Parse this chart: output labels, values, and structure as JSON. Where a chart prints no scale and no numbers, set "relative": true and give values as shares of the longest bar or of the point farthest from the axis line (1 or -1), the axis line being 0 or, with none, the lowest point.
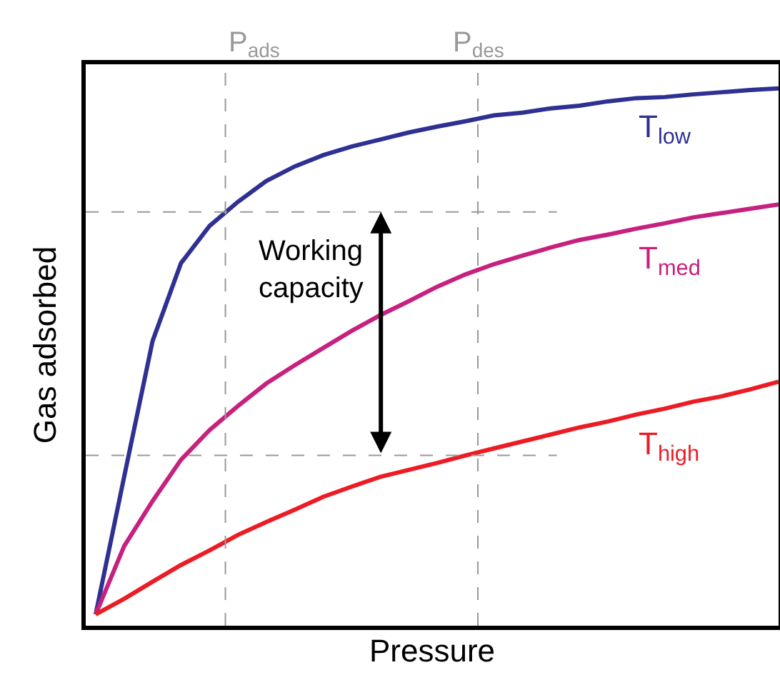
{
  "chart_data": {
    "type": "line",
    "relative": true,
    "xlabel": "Pressure",
    "ylabel": "Gas adsorbed",
    "categories": [
      null,
      null,
      null,
      null,
      null,
      null,
      null,
      null,
      null,
      null,
      null,
      null,
      null,
      null,
      null,
      null,
      null,
      null,
      null,
      null,
      null,
      null,
      null,
      null,
      null
    ],
    "tick_labels": false,
    "legend": false,
    "marker": "none",
    "line_style": "solid",
    "series": [
      {
        "name": "T$_{low}$",
        "color": "#2e3192",
        "values": [
          0.021,
          0.277,
          0.53,
          0.675,
          0.744,
          0.789,
          0.828,
          0.855,
          0.876,
          0.892,
          0.905,
          0.918,
          0.929,
          0.939,
          0.95,
          0.955,
          0.963,
          0.968,
          0.976,
          0.982,
          0.984,
          0.989,
          0.993,
          0.997,
          1
        ]
      },
      {
        "name": "T$_{med}$",
        "color": "#c7217f",
        "values": [
          0.021,
          0.148,
          0.232,
          0.309,
          0.364,
          0.409,
          0.451,
          0.485,
          0.517,
          0.549,
          0.578,
          0.604,
          0.631,
          0.654,
          0.673,
          0.689,
          0.704,
          0.718,
          0.728,
          0.739,
          0.749,
          0.76,
          0.768,
          0.776,
          0.784
        ]
      },
      {
        "name": "T$_{high}$",
        "color": "#ec1c24",
        "values": [
          0.021,
          0.05,
          0.082,
          0.113,
          0.14,
          0.169,
          0.193,
          0.216,
          0.24,
          0.259,
          0.277,
          0.29,
          0.303,
          0.317,
          0.33,
          0.343,
          0.356,
          0.369,
          0.38,
          0.393,
          0.404,
          0.417,
          0.427,
          0.44,
          0.454
        ]
      }
    ],
    "ref_lines": [
      {
        "axis": "y",
        "value": 0.77,
        "label": null,
        "color": "#999999",
        "line_style": "dashed"
      },
      {
        "axis": "y",
        "value": 0.317,
        "label": null,
        "color": "#999999",
        "line_style": "dashed"
      }
    ],
    "annotations": [
      "Working capacity",
      "P$_{ads}$",
      "P$_{des}$"
    ]
  }
}
